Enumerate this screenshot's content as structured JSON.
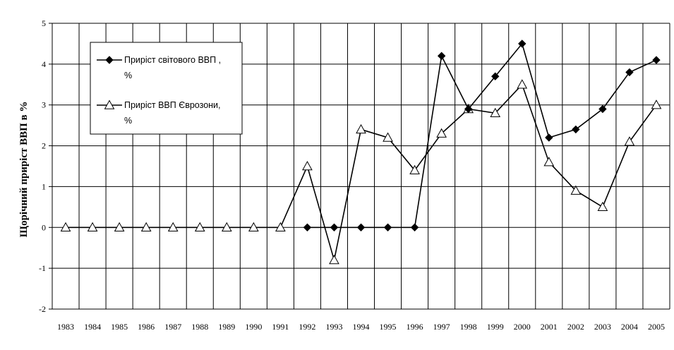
{
  "chart_data": {
    "type": "line",
    "ylabel": "Щорічний приріст ВВП в %",
    "xlabel": "",
    "title": "",
    "categories": [
      "1983",
      "1984",
      "1985",
      "1986",
      "1987",
      "1988",
      "1989",
      "1990",
      "1991",
      "1992",
      "1993",
      "1994",
      "1995",
      "1996",
      "1997",
      "1998",
      "1999",
      "2000",
      "2001",
      "2002",
      "2003",
      "2004",
      "2005"
    ],
    "ylim": [
      -2,
      5
    ],
    "yticks": [
      -2,
      -1,
      0,
      1,
      2,
      3,
      4,
      5
    ],
    "grid": true,
    "legend_position": "top-left",
    "series": [
      {
        "name_lines": [
          "Приріст світового ВВП ,",
          "%"
        ],
        "marker": "filled-diamond",
        "color": "#000000",
        "values": [
          null,
          null,
          null,
          null,
          null,
          null,
          null,
          null,
          null,
          0,
          0,
          0,
          0,
          0,
          4.2,
          2.9,
          3.7,
          4.5,
          2.2,
          2.4,
          2.9,
          3.8,
          4.1
        ]
      },
      {
        "name_lines": [
          "Приріст ВВП Єврозони,",
          "%"
        ],
        "marker": "hollow-triangle",
        "color": "#000000",
        "values": [
          0,
          0,
          0,
          0,
          0,
          0,
          0,
          0,
          0,
          1.5,
          -0.8,
          2.4,
          2.2,
          1.4,
          2.3,
          2.9,
          2.8,
          3.5,
          1.6,
          0.9,
          0.5,
          2.1,
          3.0
        ]
      }
    ]
  }
}
